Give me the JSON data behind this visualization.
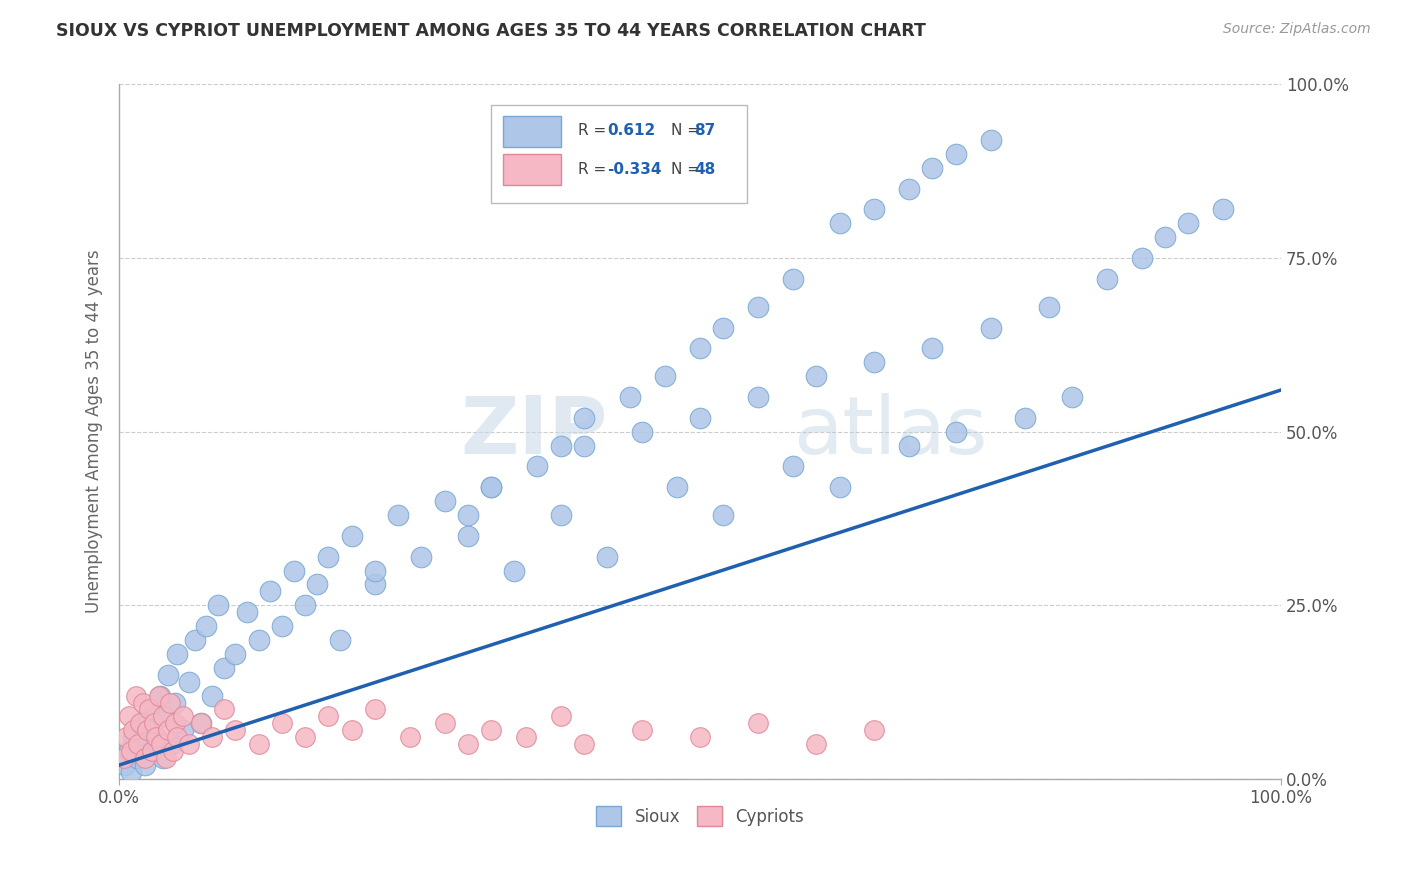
{
  "title": "SIOUX VS CYPRIOT UNEMPLOYMENT AMONG AGES 35 TO 44 YEARS CORRELATION CHART",
  "source": "Source: ZipAtlas.com",
  "ylabel": "Unemployment Among Ages 35 to 44 years",
  "xlim": [
    0,
    1
  ],
  "ylim": [
    0,
    1
  ],
  "xtick_labels": [
    "0.0%",
    "100.0%"
  ],
  "ytick_labels": [
    "0.0%",
    "25.0%",
    "50.0%",
    "75.0%",
    "100.0%"
  ],
  "ytick_positions": [
    0.0,
    0.25,
    0.5,
    0.75,
    1.0
  ],
  "watermark_zip": "ZIP",
  "watermark_atlas": "atlas",
  "sioux_color": "#aec6e8",
  "sioux_edge_color": "#7aa8d4",
  "cypriot_color": "#f5b8c4",
  "cypriot_edge_color": "#e08898",
  "trend_color": "#2060b0",
  "legend_sioux_r": "0.612",
  "legend_sioux_n": "87",
  "legend_cypriot_r": "-0.334",
  "legend_cypriot_n": "48",
  "sioux_x": [
    0.005,
    0.008,
    0.01,
    0.012,
    0.015,
    0.018,
    0.02,
    0.022,
    0.025,
    0.028,
    0.03,
    0.032,
    0.035,
    0.038,
    0.04,
    0.042,
    0.045,
    0.048,
    0.05,
    0.055,
    0.06,
    0.065,
    0.07,
    0.075,
    0.08,
    0.085,
    0.09,
    0.1,
    0.11,
    0.12,
    0.13,
    0.14,
    0.15,
    0.16,
    0.17,
    0.18,
    0.19,
    0.2,
    0.22,
    0.24,
    0.26,
    0.28,
    0.3,
    0.32,
    0.34,
    0.36,
    0.38,
    0.4,
    0.42,
    0.45,
    0.48,
    0.5,
    0.52,
    0.55,
    0.58,
    0.6,
    0.62,
    0.65,
    0.68,
    0.7,
    0.72,
    0.75,
    0.78,
    0.8,
    0.82,
    0.85,
    0.88,
    0.9,
    0.92,
    0.95,
    0.62,
    0.65,
    0.68,
    0.7,
    0.72,
    0.75,
    0.55,
    0.58,
    0.44,
    0.47,
    0.5,
    0.52,
    0.38,
    0.4,
    0.3,
    0.32,
    0.22
  ],
  "sioux_y": [
    0.02,
    0.04,
    0.01,
    0.06,
    0.03,
    0.05,
    0.08,
    0.02,
    0.07,
    0.04,
    0.1,
    0.06,
    0.12,
    0.03,
    0.09,
    0.15,
    0.05,
    0.11,
    0.18,
    0.07,
    0.14,
    0.2,
    0.08,
    0.22,
    0.12,
    0.25,
    0.16,
    0.18,
    0.24,
    0.2,
    0.27,
    0.22,
    0.3,
    0.25,
    0.28,
    0.32,
    0.2,
    0.35,
    0.28,
    0.38,
    0.32,
    0.4,
    0.35,
    0.42,
    0.3,
    0.45,
    0.38,
    0.48,
    0.32,
    0.5,
    0.42,
    0.52,
    0.38,
    0.55,
    0.45,
    0.58,
    0.42,
    0.6,
    0.48,
    0.62,
    0.5,
    0.65,
    0.52,
    0.68,
    0.55,
    0.72,
    0.75,
    0.78,
    0.8,
    0.82,
    0.8,
    0.82,
    0.85,
    0.88,
    0.9,
    0.92,
    0.68,
    0.72,
    0.55,
    0.58,
    0.62,
    0.65,
    0.48,
    0.52,
    0.38,
    0.42,
    0.3
  ],
  "cypriot_x": [
    0.004,
    0.006,
    0.008,
    0.01,
    0.012,
    0.014,
    0.016,
    0.018,
    0.02,
    0.022,
    0.024,
    0.026,
    0.028,
    0.03,
    0.032,
    0.034,
    0.036,
    0.038,
    0.04,
    0.042,
    0.044,
    0.046,
    0.048,
    0.05,
    0.055,
    0.06,
    0.07,
    0.08,
    0.09,
    0.1,
    0.12,
    0.14,
    0.16,
    0.18,
    0.2,
    0.22,
    0.25,
    0.28,
    0.3,
    0.32,
    0.35,
    0.38,
    0.4,
    0.45,
    0.5,
    0.55,
    0.6,
    0.65
  ],
  "cypriot_y": [
    0.03,
    0.06,
    0.09,
    0.04,
    0.07,
    0.12,
    0.05,
    0.08,
    0.11,
    0.03,
    0.07,
    0.1,
    0.04,
    0.08,
    0.06,
    0.12,
    0.05,
    0.09,
    0.03,
    0.07,
    0.11,
    0.04,
    0.08,
    0.06,
    0.09,
    0.05,
    0.08,
    0.06,
    0.1,
    0.07,
    0.05,
    0.08,
    0.06,
    0.09,
    0.07,
    0.1,
    0.06,
    0.08,
    0.05,
    0.07,
    0.06,
    0.09,
    0.05,
    0.07,
    0.06,
    0.08,
    0.05,
    0.07
  ],
  "trend_x": [
    0.0,
    1.0
  ],
  "trend_y": [
    0.02,
    0.56
  ],
  "background_color": "#ffffff",
  "grid_color": "#cccccc",
  "title_color": "#333333",
  "axis_label_color": "#666666",
  "tick_color": "#555555",
  "legend_r_color": "#2060b0",
  "legend_n_color": "#2060b0"
}
